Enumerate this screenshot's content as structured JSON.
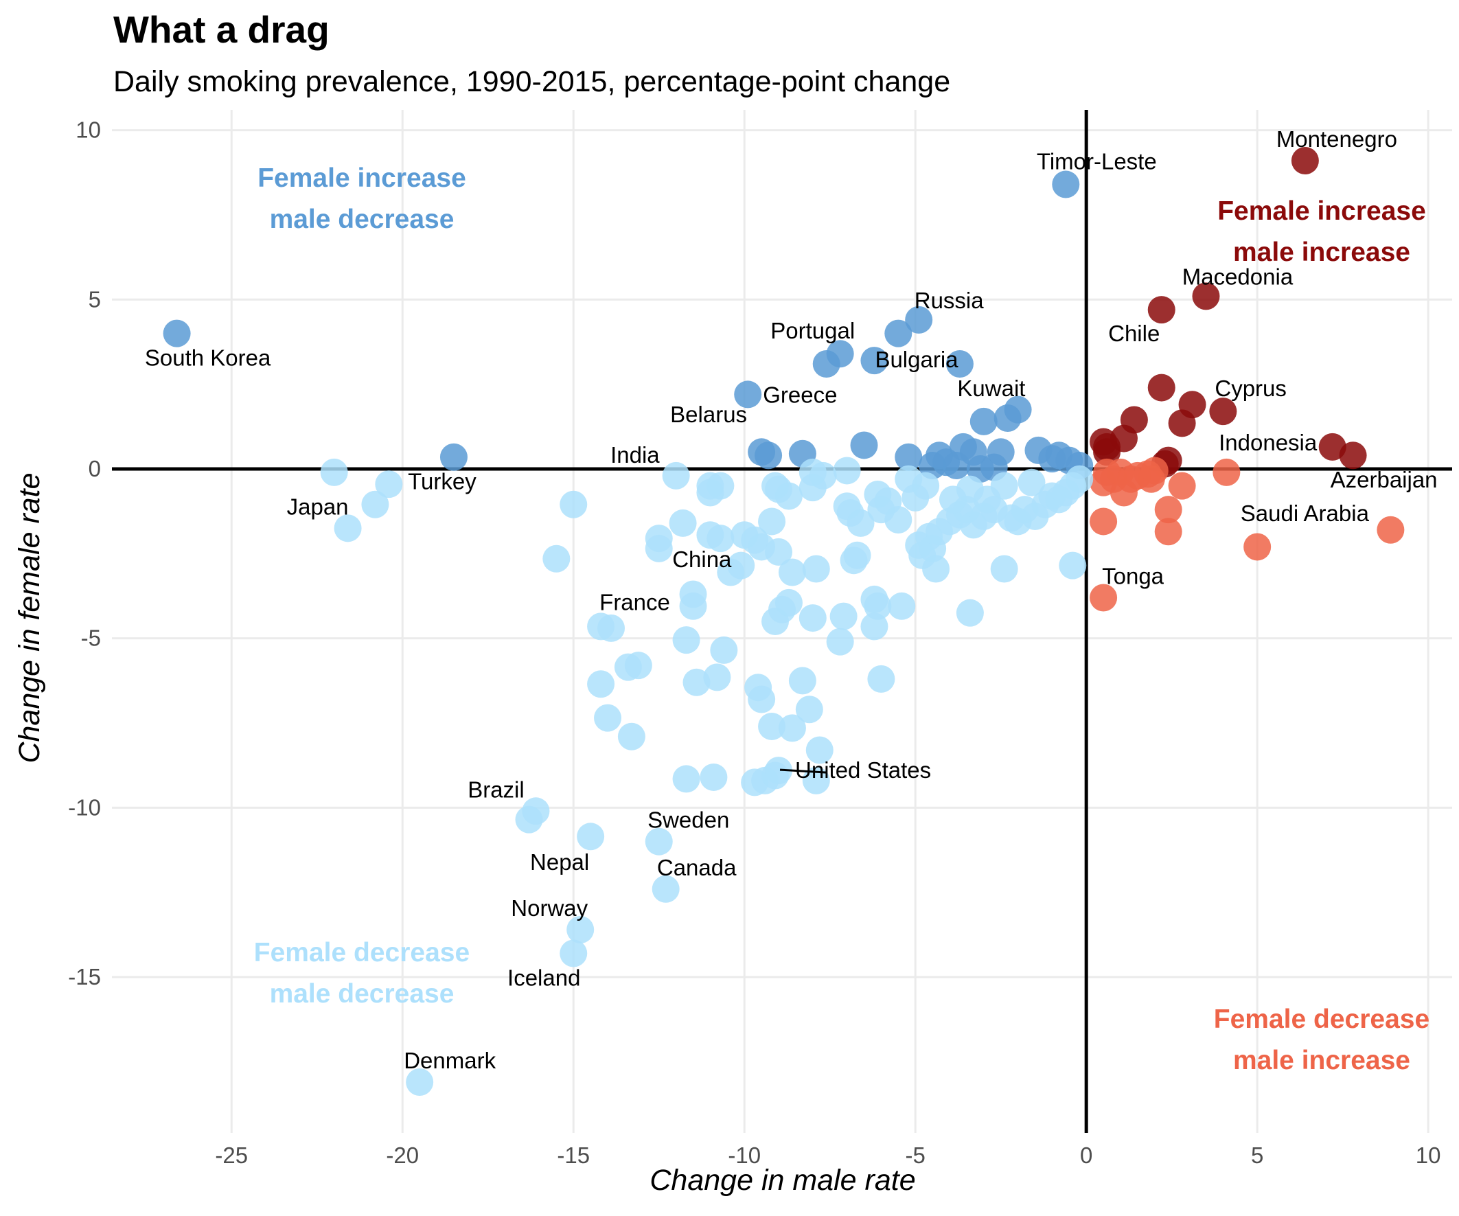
{
  "chart_data": {
    "type": "scatter",
    "title": "What a drag",
    "subtitle": "Daily smoking prevalence, 1990-2015, percentage-point change",
    "xlabel": "Change in male rate",
    "ylabel": "Change in female rate",
    "xlim": [
      -28.5,
      10.7
    ],
    "ylim": [
      -19.6,
      10.6
    ],
    "x_ticks": [
      -25,
      -20,
      -15,
      -10,
      -5,
      0,
      5,
      10
    ],
    "x_tick_labels": [
      "-25",
      "-20",
      "-15",
      "-10",
      "-5",
      "0",
      "5",
      "10"
    ],
    "y_ticks": [
      10,
      5,
      0,
      -5,
      -10,
      -15
    ],
    "y_tick_labels": [
      "10",
      "5",
      "0",
      "-5",
      "-10",
      "-15"
    ],
    "grid": true,
    "colors": {
      "female_up_male_down": "#5b9bd5",
      "female_up_male_up": "#8b0a0a",
      "female_down_male_down": "#ade0fc",
      "female_down_male_up": "#ee6448"
    },
    "quadrant_labels": [
      {
        "line1": "Female increase",
        "line2": "male decrease",
        "color": "#5b9bd5"
      },
      {
        "line1": "Female increase",
        "line2": "male increase",
        "color": "#8b0a0a"
      },
      {
        "line1": "Female decrease",
        "line2": "male decrease",
        "color": "#ade0fc"
      },
      {
        "line1": "Female decrease",
        "line2": "male increase",
        "color": "#ee6448"
      }
    ],
    "labeled_points": [
      {
        "name": "Montenegro",
        "x": 6.4,
        "y": 9.1
      },
      {
        "name": "Timor-Leste",
        "x": -0.6,
        "y": 8.4
      },
      {
        "name": "Macedonia",
        "x": 3.5,
        "y": 5.1
      },
      {
        "name": "Chile",
        "x": 2.2,
        "y": 4.7
      },
      {
        "name": "Russia",
        "x": -4.9,
        "y": 4.4
      },
      {
        "name": "Portugal",
        "x": -7.6,
        "y": 3.1
      },
      {
        "name": "Bulgaria",
        "x": -6.2,
        "y": 3.2
      },
      {
        "name": "South Korea",
        "x": -26.6,
        "y": 4.0
      },
      {
        "name": "Kuwait",
        "x": -3.7,
        "y": 3.1
      },
      {
        "name": "Greece",
        "x": -9.9,
        "y": 2.2
      },
      {
        "name": "Cyprus",
        "x": 4.0,
        "y": 1.7
      },
      {
        "name": "Belarus",
        "x": -9.4,
        "y": 0.45
      },
      {
        "name": "India",
        "x": -8.3,
        "y": 0.45
      },
      {
        "name": "Indonesia",
        "x": 2.4,
        "y": 0.2
      },
      {
        "name": "Azerbaijan",
        "x": 7.8,
        "y": 0.4
      },
      {
        "name": "Turkey",
        "x": -18.5,
        "y": 0.35
      },
      {
        "name": "Japan",
        "x": -21.6,
        "y": -1.75
      },
      {
        "name": "Saudi Arabia",
        "x": 8.9,
        "y": -1.8
      },
      {
        "name": "China",
        "x": -10.4,
        "y": -3.0
      },
      {
        "name": "Tonga",
        "x": 0.5,
        "y": -3.8
      },
      {
        "name": "France",
        "x": -11.5,
        "y": -3.7
      },
      {
        "name": "United States",
        "x": -9.0,
        "y": -8.9
      },
      {
        "name": "Brazil",
        "x": -16.1,
        "y": -10.1
      },
      {
        "name": "Sweden",
        "x": -12.5,
        "y": -11.0
      },
      {
        "name": "Nepal",
        "x": -14.5,
        "y": -10.9
      },
      {
        "name": "Canada",
        "x": -12.3,
        "y": -12.4
      },
      {
        "name": "Norway",
        "x": -14.8,
        "y": -13.6
      },
      {
        "name": "Iceland",
        "x": -15.0,
        "y": -14.3
      },
      {
        "name": "Denmark",
        "x": -19.5,
        "y": -18.1
      }
    ],
    "points": [
      [
        -26.6,
        4.0
      ],
      [
        -18.5,
        0.35
      ],
      [
        -9.9,
        2.2
      ],
      [
        -9.5,
        0.5
      ],
      [
        -9.3,
        0.4
      ],
      [
        -8.3,
        0.45
      ],
      [
        -7.6,
        3.1
      ],
      [
        -7.2,
        3.4
      ],
      [
        -6.2,
        3.2
      ],
      [
        -5.5,
        4.0
      ],
      [
        -4.9,
        4.4
      ],
      [
        -3.7,
        3.1
      ],
      [
        -6.5,
        0.7
      ],
      [
        -5.2,
        0.35
      ],
      [
        -4.3,
        0.4
      ],
      [
        -4.1,
        0.2
      ],
      [
        -3.8,
        0.1
      ],
      [
        -3.6,
        0.65
      ],
      [
        -3.3,
        0.5
      ],
      [
        -3.0,
        1.4
      ],
      [
        -2.5,
        0.5
      ],
      [
        -2.3,
        1.5
      ],
      [
        -2.0,
        1.75
      ],
      [
        -1.4,
        0.55
      ],
      [
        -1.0,
        0.3
      ],
      [
        -0.8,
        0.4
      ],
      [
        -0.5,
        0.25
      ],
      [
        -0.2,
        0.1
      ],
      [
        -2.7,
        0.05
      ],
      [
        -4.5,
        0.1
      ],
      [
        -3.1,
        0.0
      ],
      [
        -0.6,
        8.4
      ],
      [
        6.4,
        9.1
      ],
      [
        3.5,
        5.1
      ],
      [
        2.2,
        4.7
      ],
      [
        2.2,
        2.4
      ],
      [
        3.1,
        1.9
      ],
      [
        4.0,
        1.7
      ],
      [
        1.4,
        1.45
      ],
      [
        2.8,
        1.35
      ],
      [
        1.1,
        0.9
      ],
      [
        0.5,
        0.8
      ],
      [
        0.6,
        0.65
      ],
      [
        0.6,
        0.5
      ],
      [
        2.3,
        0.15
      ],
      [
        2.4,
        0.25
      ],
      [
        7.2,
        0.65
      ],
      [
        7.8,
        0.4
      ],
      [
        0.5,
        -0.4
      ],
      [
        0.6,
        -0.1
      ],
      [
        0.8,
        -0.3
      ],
      [
        1.0,
        -0.1
      ],
      [
        1.1,
        -0.7
      ],
      [
        1.3,
        -0.3
      ],
      [
        1.5,
        -0.2
      ],
      [
        1.8,
        -0.15
      ],
      [
        1.9,
        -0.3
      ],
      [
        2.0,
        -0.05
      ],
      [
        2.8,
        -0.5
      ],
      [
        4.1,
        -0.1
      ],
      [
        2.4,
        -1.2
      ],
      [
        2.4,
        -1.85
      ],
      [
        0.5,
        -1.55
      ],
      [
        5.0,
        -2.3
      ],
      [
        8.9,
        -1.8
      ],
      [
        0.5,
        -3.8
      ],
      [
        -22.0,
        -0.1
      ],
      [
        -21.6,
        -1.75
      ],
      [
        -20.4,
        -0.45
      ],
      [
        -20.8,
        -1.05
      ],
      [
        -15.0,
        -1.05
      ],
      [
        -15.5,
        -2.65
      ],
      [
        -12.0,
        -0.2
      ],
      [
        -11.8,
        -1.6
      ],
      [
        -12.5,
        -2.05
      ],
      [
        -12.5,
        -2.35
      ],
      [
        -11.0,
        -0.5
      ],
      [
        -10.7,
        -0.5
      ],
      [
        -11.0,
        -0.7
      ],
      [
        -11.0,
        -1.95
      ],
      [
        -10.7,
        -2.05
      ],
      [
        -10.0,
        -1.95
      ],
      [
        -9.7,
        -2.1
      ],
      [
        -9.2,
        -1.55
      ],
      [
        -9.1,
        -0.5
      ],
      [
        -9.0,
        -0.6
      ],
      [
        -8.7,
        -0.8
      ],
      [
        -8.0,
        -0.1
      ],
      [
        -7.7,
        -0.2
      ],
      [
        -8.0,
        -0.55
      ],
      [
        -7.0,
        -0.05
      ],
      [
        -7.0,
        -1.1
      ],
      [
        -6.9,
        -1.3
      ],
      [
        -6.6,
        -1.6
      ],
      [
        -6.0,
        -1.2
      ],
      [
        -6.1,
        -0.75
      ],
      [
        -5.8,
        -0.95
      ],
      [
        -5.5,
        -1.5
      ],
      [
        -5.0,
        -0.85
      ],
      [
        -4.9,
        -2.25
      ],
      [
        -4.6,
        -2.0
      ],
      [
        -4.5,
        -2.35
      ],
      [
        -4.3,
        -1.85
      ],
      [
        -4.0,
        -1.55
      ],
      [
        -3.7,
        -1.35
      ],
      [
        -3.5,
        -1.2
      ],
      [
        -3.3,
        -1.65
      ],
      [
        -3.0,
        -1.4
      ],
      [
        -2.7,
        -1.2
      ],
      [
        -2.2,
        -1.45
      ],
      [
        -2.0,
        -1.55
      ],
      [
        -1.8,
        -1.2
      ],
      [
        -1.5,
        -1.4
      ],
      [
        -1.2,
        -1.05
      ],
      [
        -1.0,
        -0.8
      ],
      [
        -0.8,
        -0.9
      ],
      [
        -0.6,
        -0.7
      ],
      [
        -0.4,
        -0.5
      ],
      [
        -0.2,
        -0.3
      ],
      [
        -3.4,
        -0.6
      ],
      [
        -2.4,
        -0.5
      ],
      [
        -1.6,
        -0.4
      ],
      [
        -4.7,
        -0.5
      ],
      [
        -5.2,
        -0.3
      ],
      [
        -3.9,
        -0.9
      ],
      [
        -2.9,
        -0.9
      ],
      [
        -10.1,
        -2.85
      ],
      [
        -9.5,
        -2.3
      ],
      [
        -9.0,
        -2.45
      ],
      [
        -8.6,
        -3.05
      ],
      [
        -7.9,
        -2.95
      ],
      [
        -6.7,
        -2.55
      ],
      [
        -6.8,
        -2.7
      ],
      [
        -4.8,
        -2.55
      ],
      [
        -4.4,
        -2.95
      ],
      [
        -2.4,
        -2.95
      ],
      [
        -0.4,
        -2.85
      ],
      [
        -10.4,
        -3.05
      ],
      [
        -11.5,
        -3.7
      ],
      [
        -11.5,
        -4.05
      ],
      [
        -14.2,
        -4.65
      ],
      [
        -13.9,
        -4.7
      ],
      [
        -9.1,
        -4.5
      ],
      [
        -8.9,
        -4.15
      ],
      [
        -8.7,
        -3.95
      ],
      [
        -8.0,
        -4.4
      ],
      [
        -7.1,
        -4.35
      ],
      [
        -6.2,
        -3.85
      ],
      [
        -6.1,
        -4.05
      ],
      [
        -5.4,
        -4.05
      ],
      [
        -3.4,
        -4.25
      ],
      [
        -6.2,
        -4.65
      ],
      [
        -11.7,
        -5.05
      ],
      [
        -10.6,
        -5.35
      ],
      [
        -7.2,
        -5.1
      ],
      [
        -14.2,
        -6.35
      ],
      [
        -13.4,
        -5.85
      ],
      [
        -13.1,
        -5.8
      ],
      [
        -11.4,
        -6.3
      ],
      [
        -10.8,
        -6.15
      ],
      [
        -9.6,
        -6.45
      ],
      [
        -8.3,
        -6.25
      ],
      [
        -6.0,
        -6.2
      ],
      [
        -14.0,
        -7.35
      ],
      [
        -13.3,
        -7.9
      ],
      [
        -9.5,
        -6.8
      ],
      [
        -9.2,
        -7.6
      ],
      [
        -8.6,
        -7.65
      ],
      [
        -8.1,
        -7.1
      ],
      [
        -7.8,
        -8.3
      ],
      [
        -11.7,
        -9.15
      ],
      [
        -10.9,
        -9.1
      ],
      [
        -9.7,
        -9.25
      ],
      [
        -9.4,
        -9.2
      ],
      [
        -9.1,
        -9.05
      ],
      [
        -9.0,
        -8.9
      ],
      [
        -7.9,
        -9.2
      ],
      [
        -16.1,
        -10.1
      ],
      [
        -16.3,
        -10.35
      ],
      [
        -14.5,
        -10.85
      ],
      [
        -12.5,
        -11.0
      ],
      [
        -12.3,
        -12.4
      ],
      [
        -14.8,
        -13.6
      ],
      [
        -15.0,
        -14.3
      ],
      [
        -19.5,
        -18.1
      ]
    ]
  }
}
